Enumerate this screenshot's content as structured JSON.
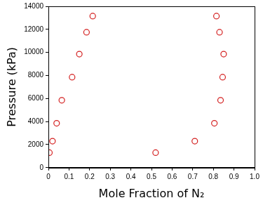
{
  "chart_data": {
    "type": "scatter",
    "x_label": "Mole Fraction of N₂",
    "y_label": "Pressure (kPa)",
    "x": [
      0.005,
      0.02,
      0.04,
      0.065,
      0.115,
      0.15,
      0.185,
      0.215,
      0.52,
      0.71,
      0.805,
      0.835,
      0.845,
      0.85,
      0.83,
      0.815
    ],
    "values": [
      1300,
      2300,
      3850,
      5850,
      7850,
      9850,
      11750,
      13150,
      1300,
      2300,
      3850,
      5850,
      7850,
      9850,
      11750,
      13150
    ],
    "color": "#d42020",
    "marker": "circle_open",
    "xlim": [
      0,
      1
    ],
    "xticks": [
      0,
      0.1,
      0.2,
      0.3,
      0.4,
      0.5,
      0.6,
      0.7,
      0.8,
      0.9,
      {
        "value": 1,
        "label": "1.0"
      }
    ],
    "ylim": [
      0,
      14000
    ],
    "yticks": [
      0,
      2000,
      4000,
      6000,
      8000,
      10000,
      12000,
      14000
    ],
    "grid": false
  }
}
